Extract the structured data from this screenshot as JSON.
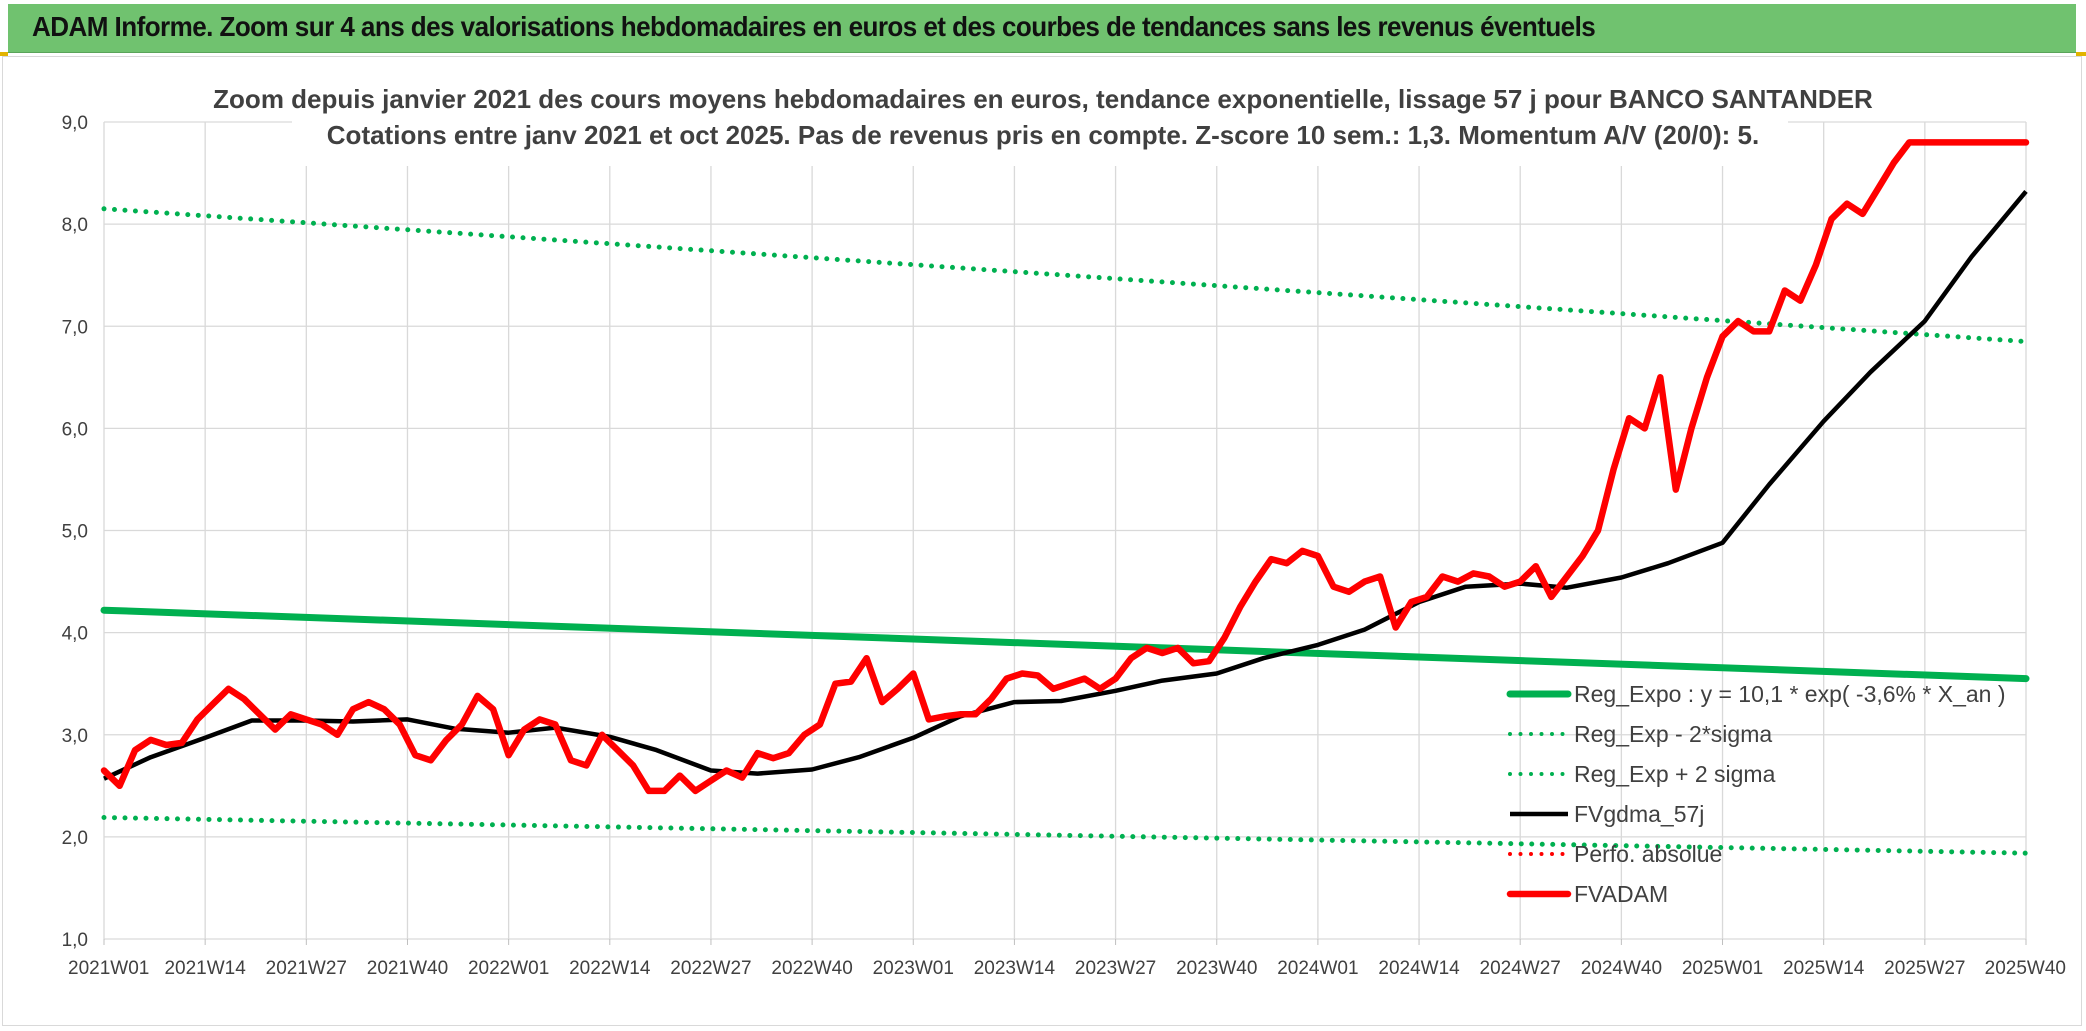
{
  "header": {
    "title": "ADAM Informe. Zoom sur 4 ans des valorisations hebdomadaires en euros et des courbes de tendances sans les revenus éventuels"
  },
  "colors": {
    "banner": "#70c26f",
    "regression": "#00b050",
    "price": "#ff0000",
    "average": "#000000",
    "grid": "#d9d9d9"
  },
  "chart_data": {
    "type": "line",
    "title_lines": [
      "Zoom depuis janvier 2021 des cours moyens hebdomadaires en euros, tendance exponentielle, lissage 57 j pour BANCO SANTANDER",
      "Cotations entre janv 2021 et oct 2025. Pas de revenus pris en compte. Z-score 10 sem.: 1,3. Momentum A/V (20/0): 5."
    ],
    "x_tick_labels": [
      "2021W01",
      "2021W14",
      "2021W27",
      "2021W40",
      "2022W01",
      "2022W14",
      "2022W27",
      "2022W40",
      "2023W01",
      "2023W14",
      "2023W27",
      "2023W40",
      "2024W01",
      "2024W14",
      "2024W27",
      "2024W40",
      "2025W01",
      "2025W14",
      "2025W27",
      "2025W40"
    ],
    "y_tick_labels": [
      "1,0",
      "2,0",
      "3,0",
      "4,0",
      "5,0",
      "6,0",
      "7,0",
      "8,0",
      "9,0"
    ],
    "ylim": [
      1.0,
      9.0
    ],
    "grid": true,
    "legend_position": "bottom-right",
    "series": [
      {
        "name": "Reg_Expo : y = 10,1 * exp( -3,6% *  X_an )",
        "style": "solid",
        "color": "#00b050",
        "x": [
          "2021W01",
          "2025W40"
        ],
        "values": [
          4.22,
          3.55
        ]
      },
      {
        "name": "Reg_Exp - 2*sigma",
        "style": "dotted",
        "color": "#00b050",
        "x": [
          "2021W01",
          "2025W40"
        ],
        "values": [
          2.19,
          1.84
        ]
      },
      {
        "name": "Reg_Exp + 2 sigma",
        "style": "dotted",
        "color": "#00b050",
        "x": [
          "2021W01",
          "2025W40"
        ],
        "values": [
          8.15,
          6.85
        ]
      },
      {
        "name": "FVgdma_57j",
        "style": "solid",
        "color": "#000000",
        "x": [
          "2021W01",
          "2021W07",
          "2021W14",
          "2021W20",
          "2021W27",
          "2021W33",
          "2021W40",
          "2021W46",
          "2022W01",
          "2022W07",
          "2022W14",
          "2022W20",
          "2022W27",
          "2022W33",
          "2022W40",
          "2022W46",
          "2023W01",
          "2023W07",
          "2023W14",
          "2023W20",
          "2023W27",
          "2023W33",
          "2023W40",
          "2023W46",
          "2024W01",
          "2024W07",
          "2024W14",
          "2024W20",
          "2024W27",
          "2024W33",
          "2024W40",
          "2024W46",
          "2025W01",
          "2025W07",
          "2025W14",
          "2025W20",
          "2025W27",
          "2025W33",
          "2025W40"
        ],
        "values": [
          2.57,
          2.78,
          2.97,
          3.14,
          3.14,
          3.13,
          3.15,
          3.06,
          3.02,
          3.07,
          2.98,
          2.85,
          2.65,
          2.62,
          2.66,
          2.78,
          2.97,
          3.18,
          3.32,
          3.33,
          3.43,
          3.53,
          3.6,
          3.75,
          3.88,
          4.03,
          4.3,
          4.45,
          4.48,
          4.44,
          4.54,
          4.68,
          4.88,
          5.45,
          6.07,
          6.55,
          7.05,
          7.68,
          8.32
        ]
      },
      {
        "name": "Perfo. absolue",
        "style": "dotted",
        "color": "#ff0000",
        "x": [],
        "values": []
      },
      {
        "name": "FVADAM",
        "style": "solid",
        "color": "#ff0000",
        "x": [
          "2021W01",
          "2021W03",
          "2021W05",
          "2021W07",
          "2021W09",
          "2021W11",
          "2021W13",
          "2021W15",
          "2021W17",
          "2021W19",
          "2021W21",
          "2021W23",
          "2021W25",
          "2021W27",
          "2021W29",
          "2021W31",
          "2021W33",
          "2021W35",
          "2021W37",
          "2021W39",
          "2021W41",
          "2021W43",
          "2021W45",
          "2021W47",
          "2021W49",
          "2021W51",
          "2022W01",
          "2022W03",
          "2022W05",
          "2022W07",
          "2022W09",
          "2022W11",
          "2022W13",
          "2022W15",
          "2022W17",
          "2022W19",
          "2022W21",
          "2022W23",
          "2022W25",
          "2022W27",
          "2022W29",
          "2022W31",
          "2022W33",
          "2022W35",
          "2022W37",
          "2022W39",
          "2022W41",
          "2022W43",
          "2022W45",
          "2022W47",
          "2022W49",
          "2022W51",
          "2023W01",
          "2023W03",
          "2023W05",
          "2023W07",
          "2023W09",
          "2023W11",
          "2023W13",
          "2023W15",
          "2023W17",
          "2023W19",
          "2023W21",
          "2023W23",
          "2023W25",
          "2023W27",
          "2023W29",
          "2023W31",
          "2023W33",
          "2023W35",
          "2023W37",
          "2023W39",
          "2023W41",
          "2023W43",
          "2023W45",
          "2023W47",
          "2023W49",
          "2023W51",
          "2024W01",
          "2024W03",
          "2024W05",
          "2024W07",
          "2024W09",
          "2024W11",
          "2024W13",
          "2024W15",
          "2024W17",
          "2024W19",
          "2024W21",
          "2024W23",
          "2024W25",
          "2024W27",
          "2024W29",
          "2024W31",
          "2024W33",
          "2024W35",
          "2024W37",
          "2024W39",
          "2024W41",
          "2024W43",
          "2024W45",
          "2024W47",
          "2024W49",
          "2024W51",
          "2025W01",
          "2025W03",
          "2025W05",
          "2025W07",
          "2025W09",
          "2025W11",
          "2025W13",
          "2025W15",
          "2025W17",
          "2025W19",
          "2025W21",
          "2025W23",
          "2025W25",
          "2025W27",
          "2025W29",
          "2025W31",
          "2025W33",
          "2025W35",
          "2025W37",
          "2025W39",
          "2025W40"
        ],
        "values": [
          2.65,
          2.5,
          2.85,
          2.95,
          2.9,
          2.92,
          3.15,
          3.3,
          3.45,
          3.35,
          3.2,
          3.05,
          3.2,
          3.15,
          3.1,
          3.0,
          3.25,
          3.32,
          3.25,
          3.1,
          2.8,
          2.75,
          2.95,
          3.1,
          3.38,
          3.25,
          2.8,
          3.05,
          3.15,
          3.1,
          2.75,
          2.7,
          3.0,
          2.85,
          2.7,
          2.45,
          2.45,
          2.6,
          2.45,
          2.55,
          2.65,
          2.58,
          2.82,
          2.77,
          2.82,
          3.0,
          3.1,
          3.5,
          3.52,
          3.75,
          3.32,
          3.45,
          3.6,
          3.15,
          3.18,
          3.2,
          3.2,
          3.35,
          3.55,
          3.6,
          3.58,
          3.45,
          3.5,
          3.55,
          3.45,
          3.55,
          3.75,
          3.85,
          3.8,
          3.85,
          3.7,
          3.72,
          3.95,
          4.25,
          4.5,
          4.72,
          4.68,
          4.8,
          4.75,
          4.45,
          4.4,
          4.5,
          4.55,
          4.05,
          4.3,
          4.35,
          4.55,
          4.5,
          4.58,
          4.55,
          4.45,
          4.5,
          4.65,
          4.35,
          4.55,
          4.75,
          5.0,
          5.6,
          6.1,
          6.0,
          6.5,
          5.4,
          6.0,
          6.5,
          6.9,
          7.05,
          6.95,
          6.95,
          7.35,
          7.25,
          7.6,
          8.05,
          8.2,
          8.1,
          8.35,
          8.6,
          8.8,
          8.8,
          8.8,
          8.8,
          8.8,
          8.8,
          8.8,
          8.8,
          8.8
        ]
      }
    ]
  }
}
